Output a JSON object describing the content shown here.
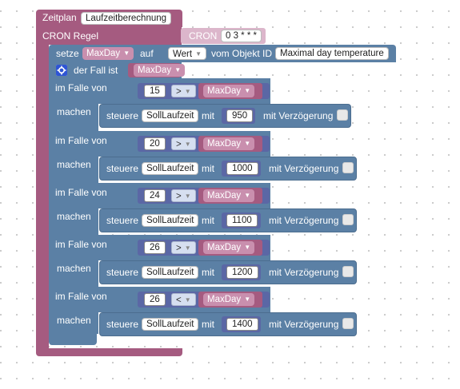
{
  "schedule": {
    "label": "Zeitplan",
    "name": "Laufzeitberechnung"
  },
  "cron": {
    "label": "CRON Regel",
    "input_label": "CRON",
    "value": "0 3 * * *"
  },
  "set": {
    "label": "setze",
    "variable": "MaxDay",
    "on_label": "auf",
    "value_type": "Wert",
    "object_label": "vom Objekt ID",
    "object_name": "Maximal day temperature"
  },
  "switch": {
    "label": "der Fall ist",
    "variable": "MaxDay"
  },
  "cases": [
    {
      "case_label": "im Falle von",
      "threshold": "15",
      "operator": ">",
      "variable": "MaxDay",
      "do_label": "machen",
      "control_label": "steuere",
      "target": "SollLaufzeit",
      "with_label": "mit",
      "value": "950",
      "delay_label": "mit Verzögerung"
    },
    {
      "case_label": "im Falle von",
      "threshold": "20",
      "operator": ">",
      "variable": "MaxDay",
      "do_label": "machen",
      "control_label": "steuere",
      "target": "SollLaufzeit",
      "with_label": "mit",
      "value": "1000",
      "delay_label": "mit Verzögerung"
    },
    {
      "case_label": "im Falle von",
      "threshold": "24",
      "operator": ">",
      "variable": "MaxDay",
      "do_label": "machen",
      "control_label": "steuere",
      "target": "SollLaufzeit",
      "with_label": "mit",
      "value": "1100",
      "delay_label": "mit Verzögerung"
    },
    {
      "case_label": "im Falle von",
      "threshold": "26",
      "operator": ">",
      "variable": "MaxDay",
      "do_label": "machen",
      "control_label": "steuere",
      "target": "SollLaufzeit",
      "with_label": "mit",
      "value": "1200",
      "delay_label": "mit Verzögerung"
    },
    {
      "case_label": "im Falle von",
      "threshold": "26",
      "operator": "<",
      "variable": "MaxDay",
      "do_label": "machen",
      "control_label": "steuere",
      "target": "SollLaufzeit",
      "with_label": "mit",
      "value": "1400",
      "delay_label": "mit Verzögerung"
    }
  ],
  "colors": {
    "schedule": "#a55b80",
    "logic": "#5b80a5",
    "math": "#5b67a5"
  }
}
